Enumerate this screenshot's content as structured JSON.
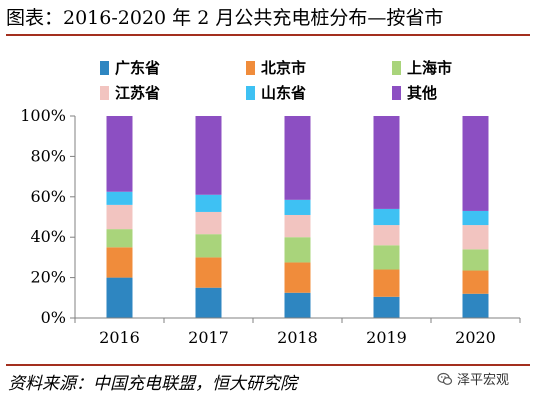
{
  "title": "图表：2016-2020 年 2 月公共充电桩分布—按省市",
  "source": "资料来源：中国充电联盟，恒大研究院",
  "watermark": {
    "text": "泽平宏观",
    "icon": "wechat-icon"
  },
  "chart_data": {
    "type": "bar",
    "stacked": true,
    "categories": [
      "2016",
      "2017",
      "2018",
      "2019",
      "2020"
    ],
    "series": [
      {
        "name": "广东省",
        "color": "#2e86c1",
        "values": [
          20,
          15,
          12.5,
          10.5,
          12
        ]
      },
      {
        "name": "北京市",
        "color": "#f08c3b",
        "values": [
          15,
          15,
          15,
          13.5,
          11.5
        ]
      },
      {
        "name": "上海市",
        "color": "#a9d47b",
        "values": [
          9,
          11.5,
          12.5,
          12,
          10.5
        ]
      },
      {
        "name": "江苏省",
        "color": "#f2c4c0",
        "values": [
          12,
          11,
          11,
          10,
          12
        ]
      },
      {
        "name": "山东省",
        "color": "#3ec1f3",
        "values": [
          6.5,
          8.5,
          7.5,
          8,
          7
        ]
      },
      {
        "name": "其他",
        "color": "#8c4fc2",
        "values": [
          37.5,
          39,
          41.5,
          46,
          47
        ]
      }
    ],
    "ylim": [
      0,
      100
    ],
    "yticks": [
      0,
      20,
      40,
      60,
      80,
      100
    ],
    "ytick_labels": [
      "0%",
      "20%",
      "40%",
      "60%",
      "80%",
      "100%"
    ],
    "xlabel": "",
    "ylabel": "",
    "grid": false,
    "legend_position": "top"
  }
}
